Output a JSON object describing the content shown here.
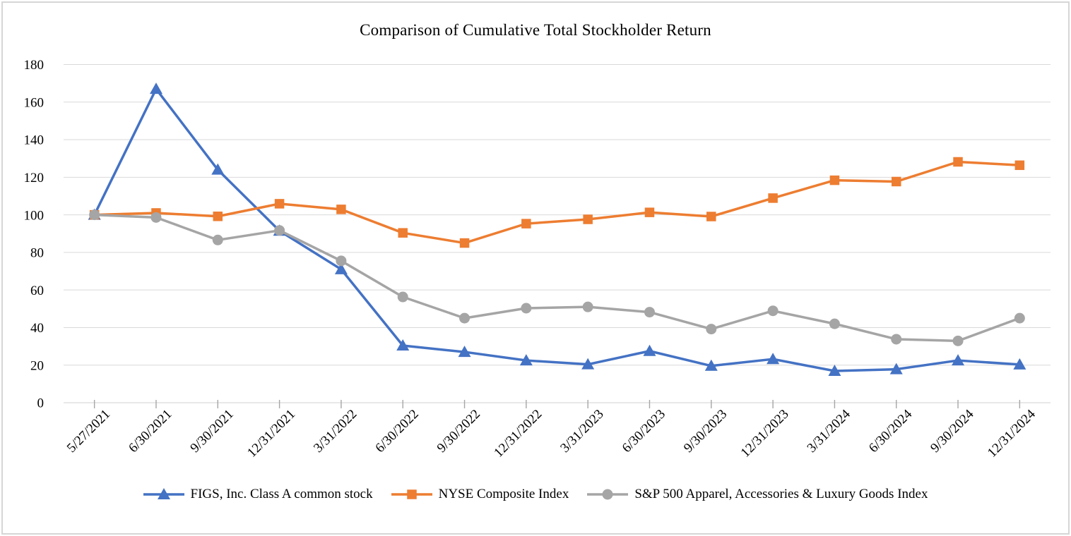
{
  "chart_data": {
    "type": "line",
    "title": "Comparison of Cumulative Total Stockholder Return",
    "categories": [
      "5/27/2021",
      "6/30/2021",
      "9/30/2021",
      "12/31/2021",
      "3/31/2022",
      "6/30/2022",
      "9/30/2022",
      "12/31/2022",
      "3/31/2023",
      "6/30/2023",
      "9/30/2023",
      "12/31/2023",
      "3/31/2024",
      "6/30/2024",
      "9/30/2024",
      "12/31/2024"
    ],
    "series": [
      {
        "name": "FIGS, Inc. Class A common stock",
        "color": "#4472C4",
        "marker": "triangle",
        "values": [
          100,
          167,
          124,
          91.5,
          71,
          30.4,
          27,
          22.5,
          20.4,
          27.5,
          19.6,
          23.2,
          16.9,
          17.8,
          22.5,
          20.3
        ]
      },
      {
        "name": "NYSE Composite Index",
        "color": "#ED7D31",
        "marker": "square",
        "values": [
          100,
          101,
          99.2,
          105.9,
          102.9,
          90.4,
          85,
          95.3,
          97.6,
          101.3,
          99.1,
          108.9,
          118.4,
          117.7,
          128.2,
          126.4
        ]
      },
      {
        "name": "S&P 500 Apparel, Accessories & Luxury Goods Index",
        "color": "#A5A5A5",
        "marker": "circle",
        "values": [
          100,
          98.6,
          86.6,
          91.7,
          75.5,
          56.3,
          45,
          50.3,
          51,
          48.2,
          39.2,
          48.9,
          42,
          33.8,
          32.9,
          45
        ]
      }
    ],
    "xlabel": "",
    "ylabel": "",
    "ylim": [
      0,
      180
    ],
    "ytick_step": 20,
    "yticks": [
      0,
      20,
      40,
      60,
      80,
      100,
      120,
      140,
      160,
      180
    ],
    "grid": "horizontal",
    "legend_position": "bottom",
    "styles": {
      "gridline_color": "#D9D9D9",
      "axis_line_color": "#D9D9D9",
      "tick_mark_color": "#A6A6A6",
      "label_color": "#000000",
      "frame_border_color": "#D6D6D6",
      "background": "#FFFFFF"
    }
  }
}
